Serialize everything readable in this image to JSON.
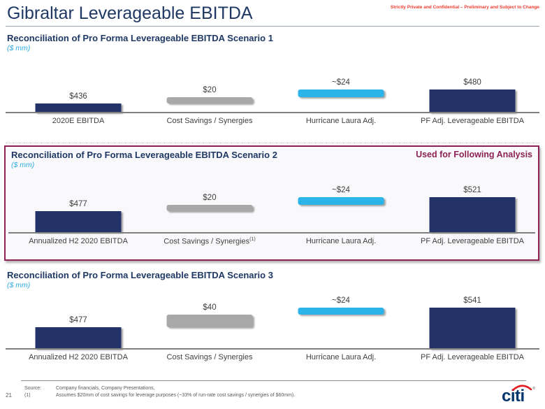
{
  "page": {
    "title": "Gibraltar Leverageable EBITDA",
    "confidential_notice": "Strictly Private and Confidential – Preliminary and Subject to Change",
    "page_number": "21"
  },
  "colors": {
    "navy": "#23336a",
    "cyan": "#2ab4e8",
    "gray": "#a8a8a8",
    "maroon": "#8b2155",
    "heading_navy": "#1f3864",
    "units_cyan": "#2daae1",
    "notice_red": "#ee3b2e"
  },
  "scenario2_badge": "Used for Following Analysis",
  "chart_data": [
    {
      "type": "bar",
      "subtype": "waterfall",
      "title": "Reconciliation of Pro Forma Leverageable EBITDA Scenario 1",
      "units_label": "($ mm)",
      "ylim": [
        407,
        541
      ],
      "grid": false,
      "legend": false,
      "bars": [
        {
          "label": "2020E EBITDA",
          "value_label": "$436",
          "start": 0,
          "end": 436,
          "color": "navy"
        },
        {
          "label": "Cost Savings / Synergies",
          "value_label": "$20",
          "start": 436,
          "end": 456,
          "color": "gray"
        },
        {
          "label": "Hurricane Laura Adj.",
          "value_label": "~$24",
          "start": 456,
          "end": 480,
          "color": "cyan"
        },
        {
          "label": "PF Adj. Leverageable EBITDA",
          "value_label": "$480",
          "start": 0,
          "end": 480,
          "color": "navy"
        }
      ]
    },
    {
      "type": "bar",
      "subtype": "waterfall",
      "title": "Reconciliation of Pro Forma Leverageable EBITDA Scenario 2",
      "units_label": "($ mm)",
      "ylim": [
        411,
        554
      ],
      "grid": false,
      "legend": false,
      "bars": [
        {
          "label": "Annualized H2 2020 EBITDA",
          "value_label": "$477",
          "start": 0,
          "end": 477,
          "color": "navy"
        },
        {
          "label": "Cost Savings / Synergies",
          "label_sup": "(1)",
          "value_label": "$20",
          "start": 477,
          "end": 497,
          "color": "gray"
        },
        {
          "label": "Hurricane Laura Adj.",
          "value_label": "~$24",
          "start": 497,
          "end": 521,
          "color": "cyan"
        },
        {
          "label": "PF Adj. Leverageable EBITDA",
          "value_label": "$521",
          "start": 0,
          "end": 521,
          "color": "navy"
        }
      ]
    },
    {
      "type": "bar",
      "subtype": "waterfall",
      "title": "Reconciliation of Pro Forma Leverageable EBITDA Scenario 3",
      "units_label": "($ mm)",
      "ylim": [
        406,
        577
      ],
      "grid": false,
      "legend": false,
      "bars": [
        {
          "label": "Annualized H2 2020 EBITDA",
          "value_label": "$477",
          "start": 0,
          "end": 477,
          "color": "navy"
        },
        {
          "label": "Cost Savings / Synergies",
          "value_label": "$40",
          "start": 477,
          "end": 517,
          "color": "gray"
        },
        {
          "label": "Hurricane Laura Adj.",
          "value_label": "~$24",
          "start": 517,
          "end": 541,
          "color": "cyan"
        },
        {
          "label": "PF Adj. Leverageable EBITDA",
          "value_label": "$541",
          "start": 0,
          "end": 541,
          "color": "navy"
        }
      ]
    }
  ],
  "footer": {
    "source_label": "Source:",
    "source_text": "Company financials, Company Presentations,",
    "footnote_label": "(1)",
    "footnote_text": "Assumes $20mm of cost savings for leverage purposes (~33% of run-rate cost savings / synergies of $60mm).",
    "logo_text": "citi"
  }
}
